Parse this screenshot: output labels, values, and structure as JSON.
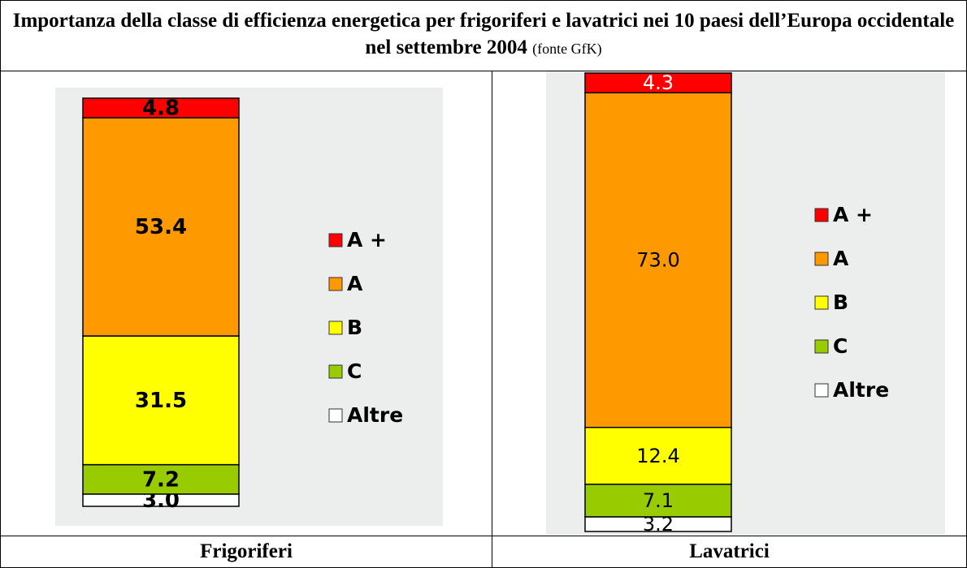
{
  "header": {
    "title": "Importanza della classe di efficienza energetica per frigoriferi e lavatrici nei 10 paesi dell’Europa occidentale nel settembre 2004",
    "source": "(fonte GfK)"
  },
  "chart_data": [
    {
      "type": "stacked_bar",
      "title": "Frigoriferi",
      "series": [
        {
          "name": "A +",
          "color": "#ff0000",
          "values": [
            4.8
          ]
        },
        {
          "name": "A",
          "color": "#ff9900",
          "values": [
            53.4
          ]
        },
        {
          "name": "B",
          "color": "#ffff00",
          "values": [
            31.5
          ]
        },
        {
          "name": "C",
          "color": "#99cc00",
          "values": [
            7.2
          ]
        },
        {
          "name": "Altre",
          "color": "#ffffff",
          "values": [
            3
          ],
          "value_labels": [
            "3.0"
          ]
        }
      ]
    },
    {
      "type": "stacked_bar",
      "title": "Lavatrici",
      "series": [
        {
          "name": "A +",
          "color": "#ff0000",
          "values": [
            4.3
          ]
        },
        {
          "name": "A",
          "color": "#ff9900",
          "values": [
            73
          ],
          "value_labels": [
            "73.0"
          ]
        },
        {
          "name": "B",
          "color": "#ffff00",
          "values": [
            12.4
          ]
        },
        {
          "name": "C",
          "color": "#99cc00",
          "values": [
            7.1
          ]
        },
        {
          "name": "Altre",
          "color": "#ffffff",
          "values": [
            3.2
          ]
        }
      ]
    }
  ]
}
